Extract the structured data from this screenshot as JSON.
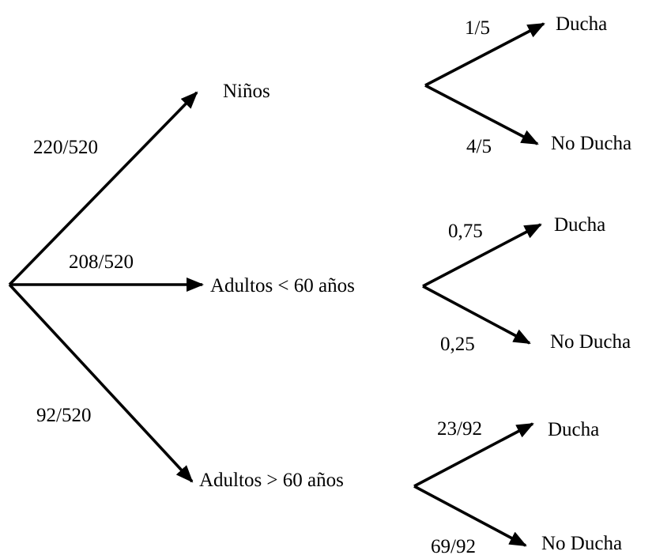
{
  "tree": {
    "root_branches": [
      {
        "probability": "220/520",
        "label": "Niños",
        "leaves": [
          {
            "probability": "1/5",
            "label": "Ducha"
          },
          {
            "probability": "4/5",
            "label": "No Ducha"
          }
        ]
      },
      {
        "probability": "208/520",
        "label": "Adultos < 60 años",
        "leaves": [
          {
            "probability": "0,75",
            "label": "Ducha"
          },
          {
            "probability": "0,25",
            "label": "No Ducha"
          }
        ]
      },
      {
        "probability": "92/520",
        "label": "Adultos > 60 años",
        "leaves": [
          {
            "probability": "23/92",
            "label": "Ducha"
          },
          {
            "probability": "69/92",
            "label": "No Ducha"
          }
        ]
      }
    ]
  }
}
